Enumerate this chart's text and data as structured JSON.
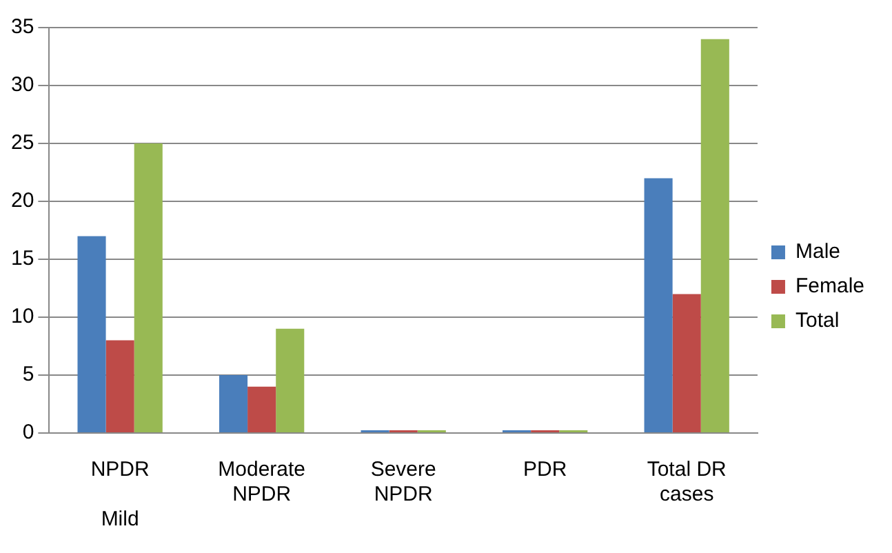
{
  "chart_data": {
    "type": "bar",
    "categories": [
      "NPDR\n\nMild",
      "Moderate\nNPDR",
      "Severe\nNPDR",
      "PDR",
      "Total DR\ncases"
    ],
    "series": [
      {
        "name": "Male",
        "color": "#4a7ebb",
        "values": [
          17,
          5,
          0,
          0,
          22
        ]
      },
      {
        "name": "Female",
        "color": "#be4b48",
        "values": [
          8,
          4,
          0,
          0,
          12
        ]
      },
      {
        "name": "Total",
        "color": "#98b954",
        "values": [
          25,
          9,
          0,
          0,
          34
        ]
      }
    ],
    "ylim": [
      0,
      35
    ],
    "yticks": [
      0,
      5,
      10,
      15,
      20,
      25,
      30,
      35
    ],
    "grid": "y",
    "legend": "right"
  }
}
